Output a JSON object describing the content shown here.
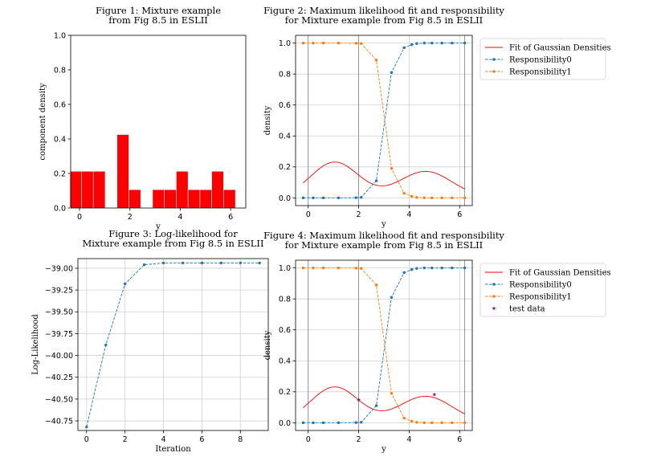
{
  "chart_data": [
    {
      "type": "bar",
      "title_lines": [
        "Figure 1: Mixture example",
        "from Fig 8.5 in ESLII"
      ],
      "xlabel": "y",
      "ylabel": "component density",
      "xlim": [
        -0.35,
        6.6
      ],
      "ylim": [
        0.0,
        1.0
      ],
      "xticks": [
        0,
        2,
        4,
        6
      ],
      "yticks": [
        0.0,
        0.2,
        0.4,
        0.6,
        0.8,
        1.0
      ],
      "bar_color": "#ff0000",
      "bin_edges": [
        -0.38,
        0.08,
        0.55,
        1.02,
        1.49,
        1.96,
        2.43,
        2.9,
        3.37,
        3.84,
        4.31,
        4.78,
        5.25,
        5.72,
        6.19,
        6.66
      ],
      "values": [
        0.2128,
        0.2128,
        0.2128,
        0,
        0.4256,
        0.1064,
        0,
        0.1064,
        0.1064,
        0.2128,
        0.1064,
        0.1064,
        0.2128,
        0.1064,
        0
      ]
    },
    {
      "type": "line",
      "title_lines": [
        "Figure 2: Maximum likelihood fit and responsibility",
        "for Mixture example from Fig 8.5 in ESLII"
      ],
      "xlabel": "y",
      "ylabel": "density",
      "xlim": [
        -0.5,
        6.5
      ],
      "ylim": [
        -0.05,
        1.05
      ],
      "xticks": [
        0,
        2,
        4,
        6
      ],
      "yticks": [
        0.0,
        0.2,
        0.4,
        0.6,
        0.8,
        1.0
      ],
      "vlines": [
        0,
        2,
        6.2
      ],
      "legend": "upper-right-outside",
      "series": [
        {
          "name": "Fit of Gaussian Densities",
          "color": "#ff0000",
          "style": "solid",
          "gauss": {
            "mu1": 1.05,
            "s1": 0.95,
            "mu2": 4.65,
            "s2": 1.05,
            "n1": 0.55,
            "n2": 0.45,
            "x0": -0.2,
            "x1": 6.2
          }
        },
        {
          "name": "Responsibility0",
          "color": "#1f77b4",
          "style": "dashed",
          "marker": "dot",
          "x": [
            -0.2,
            0.2,
            0.6,
            1.2,
            1.9,
            2.1,
            2.7,
            3.3,
            3.8,
            4.1,
            4.3,
            4.6,
            4.9,
            5.3,
            5.7,
            6.2
          ],
          "y": [
            0.0,
            0.0,
            0.0,
            0.0,
            0.001,
            0.003,
            0.11,
            0.81,
            0.97,
            0.99,
            0.997,
            1.0,
            1.0,
            1.0,
            1.0,
            1.0
          ]
        },
        {
          "name": "Responsibility1",
          "color": "#ff7f0e",
          "style": "dashed",
          "marker": "dot",
          "x": [
            -0.2,
            0.2,
            0.6,
            1.2,
            1.9,
            2.1,
            2.7,
            3.3,
            3.8,
            4.1,
            4.3,
            4.6,
            4.9,
            5.3,
            5.7,
            6.2
          ],
          "y": [
            1.0,
            1.0,
            1.0,
            1.0,
            0.999,
            0.997,
            0.89,
            0.19,
            0.03,
            0.01,
            0.003,
            0.0,
            0.0,
            0.0,
            0.0,
            0.0
          ]
        }
      ]
    },
    {
      "type": "line",
      "title_lines": [
        "Figure 3: Log-likelihood for",
        "Mixture example from Fig 8.5 in ESLII"
      ],
      "xlabel": "Iteration",
      "ylabel": "Log-Likelihood",
      "xlim": [
        -0.45,
        9.45
      ],
      "ylim": [
        -40.86,
        -38.89
      ],
      "xticks": [
        0,
        2,
        4,
        6,
        8
      ],
      "yticks": [
        -40.75,
        -40.5,
        -40.25,
        -40.0,
        -39.75,
        -39.5,
        -39.25,
        -39.0
      ],
      "ytick_labels": [
        "−40.75",
        "−40.50",
        "−40.25",
        "−40.00",
        "−39.75",
        "−39.50",
        "−39.25",
        "−39.00"
      ],
      "series": [
        {
          "name": "",
          "color": "#1f77b4",
          "style": "dashed",
          "marker": "dot",
          "x": [
            0,
            1,
            2,
            3,
            4,
            5,
            6,
            7,
            8,
            9
          ],
          "y": [
            -40.82,
            -39.88,
            -39.18,
            -38.96,
            -38.94,
            -38.94,
            -38.94,
            -38.94,
            -38.94,
            -38.94
          ]
        }
      ]
    },
    {
      "type": "line",
      "title_lines": [
        "Figure 4: Maximum likelihood fit and responsibility",
        "for Mixture example from Fig 8.5 in ESLII"
      ],
      "xlabel": "y",
      "ylabel": "density",
      "xlim": [
        -0.5,
        6.5
      ],
      "ylim": [
        -0.05,
        1.05
      ],
      "xticks": [
        0,
        2,
        4,
        6
      ],
      "yticks": [
        0.0,
        0.2,
        0.4,
        0.6,
        0.8,
        1.0
      ],
      "vlines": [
        0,
        2,
        6.2
      ],
      "legend": "upper-right-outside",
      "series": [
        {
          "name": "Fit of Gaussian Densities",
          "color": "#ff0000",
          "style": "solid",
          "gauss": {
            "mu1": 1.05,
            "s1": 0.95,
            "mu2": 4.65,
            "s2": 1.05,
            "n1": 0.55,
            "n2": 0.45,
            "x0": -0.2,
            "x1": 6.2
          }
        },
        {
          "name": "Responsibility0",
          "color": "#1f77b4",
          "style": "dashed",
          "marker": "dot",
          "x": [
            -0.2,
            0.2,
            0.6,
            1.2,
            1.9,
            2.1,
            2.7,
            3.3,
            3.8,
            4.1,
            4.3,
            4.6,
            4.9,
            5.3,
            5.7,
            6.2
          ],
          "y": [
            0.0,
            0.0,
            0.0,
            0.0,
            0.001,
            0.003,
            0.11,
            0.81,
            0.97,
            0.99,
            0.997,
            1.0,
            1.0,
            1.0,
            1.0,
            1.0
          ]
        },
        {
          "name": "Responsibility1",
          "color": "#ff7f0e",
          "style": "dashed",
          "marker": "dot",
          "x": [
            -0.2,
            0.2,
            0.6,
            1.2,
            1.9,
            2.1,
            2.7,
            3.3,
            3.8,
            4.1,
            4.3,
            4.6,
            4.9,
            5.3,
            5.7,
            6.2
          ],
          "y": [
            1.0,
            1.0,
            1.0,
            1.0,
            0.999,
            0.997,
            0.89,
            0.19,
            0.03,
            0.01,
            0.003,
            0.0,
            0.0,
            0.0,
            0.0,
            0.0
          ]
        },
        {
          "name": "test data",
          "color": "#8b008b",
          "style": "none",
          "marker": "star",
          "x": [
            2.0,
            5.0
          ],
          "y": [
            0.148,
            0.182
          ]
        }
      ]
    }
  ]
}
